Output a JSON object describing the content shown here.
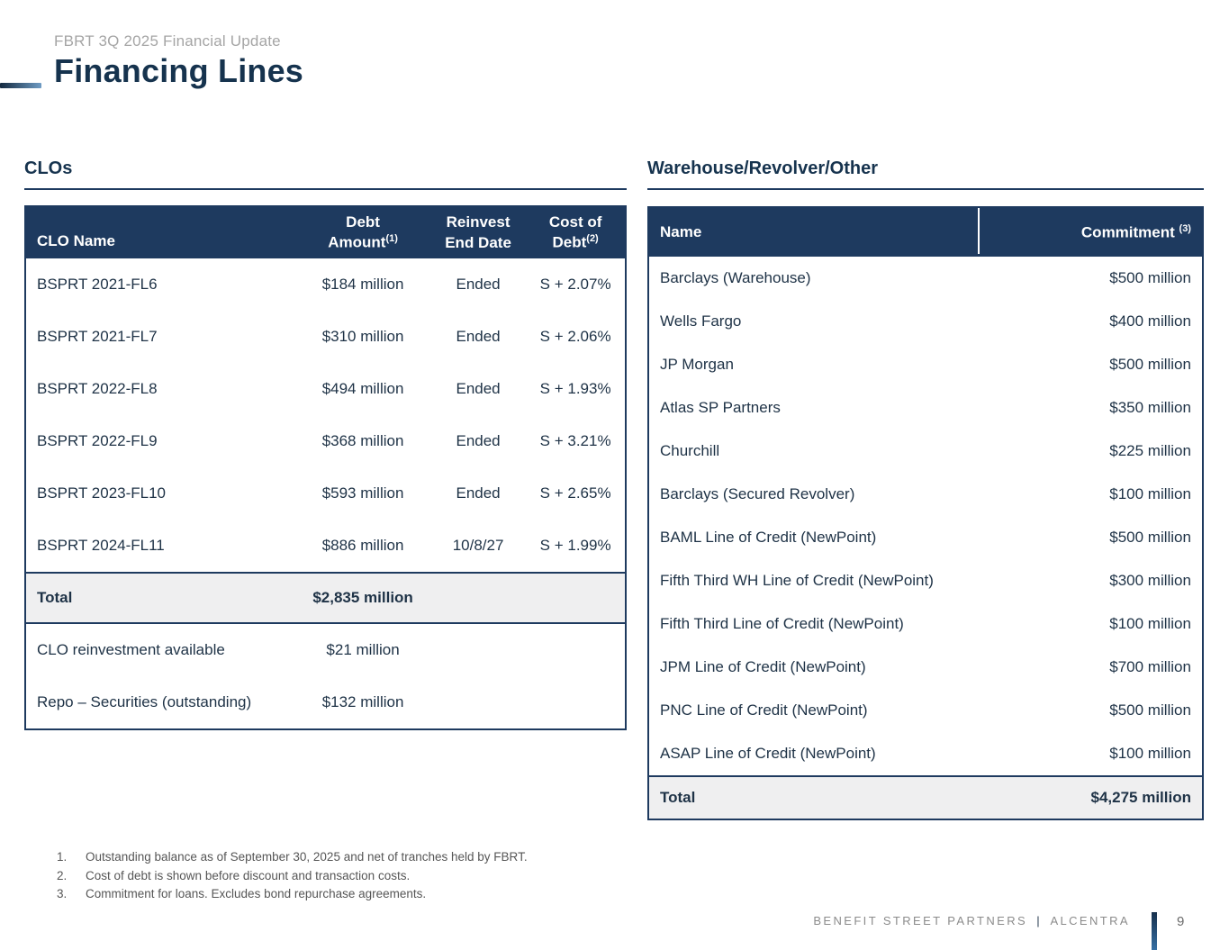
{
  "header": {
    "eyebrow": "FBRT 3Q 2025 Financial Update",
    "title": "Financing Lines"
  },
  "colors": {
    "navy": "#1e3a5f",
    "heading_navy": "#16334e",
    "total_row_bg": "#efeff0",
    "accent_gradient_start": "#13293f",
    "accent_gradient_end": "#6f9cc4"
  },
  "clos": {
    "section_title": "CLOs",
    "header": {
      "name": "CLO Name",
      "debt_line1": "Debt",
      "debt_line2": "Amount",
      "debt_sup": "(1)",
      "reinvest_line1": "Reinvest",
      "reinvest_line2": "End Date",
      "cost_line1": "Cost of",
      "cost_line2": "Debt",
      "cost_sup": "(2)"
    },
    "rows": [
      {
        "name": "BSPRT 2021-FL6",
        "debt": "$184 million",
        "reinvest": "Ended",
        "cost": "S + 2.07%"
      },
      {
        "name": "BSPRT 2021-FL7",
        "debt": "$310 million",
        "reinvest": "Ended",
        "cost": "S + 2.06%"
      },
      {
        "name": "BSPRT 2022-FL8",
        "debt": "$494 million",
        "reinvest": "Ended",
        "cost": "S + 1.93%"
      },
      {
        "name": "BSPRT 2022-FL9",
        "debt": "$368 million",
        "reinvest": "Ended",
        "cost": "S + 3.21%"
      },
      {
        "name": "BSPRT 2023-FL10",
        "debt": "$593 million",
        "reinvest": "Ended",
        "cost": "S + 2.65%"
      },
      {
        "name": "BSPRT 2024-FL11",
        "debt": "$886 million",
        "reinvest": "10/8/27",
        "cost": "S + 1.99%"
      }
    ],
    "total": {
      "label": "Total",
      "value": "$2,835 million"
    },
    "extra_rows": [
      {
        "name": "CLO reinvestment available",
        "value": "$21 million"
      },
      {
        "name": "Repo – Securities (outstanding)",
        "value": "$132 million"
      }
    ]
  },
  "warehouse": {
    "section_title": "Warehouse/Revolver/Other",
    "header": {
      "name": "Name",
      "commitment": "Commitment ",
      "commitment_sup": "(3)"
    },
    "rows": [
      {
        "name": "Barclays (Warehouse)",
        "commitment": "$500 million"
      },
      {
        "name": "Wells Fargo",
        "commitment": "$400 million"
      },
      {
        "name": "JP Morgan",
        "commitment": "$500 million"
      },
      {
        "name": "Atlas SP Partners",
        "commitment": "$350 million"
      },
      {
        "name": "Churchill",
        "commitment": "$225 million"
      },
      {
        "name": "Barclays (Secured Revolver)",
        "commitment": "$100 million"
      },
      {
        "name": "BAML Line of Credit (NewPoint)",
        "commitment": "$500 million"
      },
      {
        "name": "Fifth Third WH Line of Credit (NewPoint)",
        "commitment": "$300 million"
      },
      {
        "name": "Fifth Third Line of Credit (NewPoint)",
        "commitment": "$100 million"
      },
      {
        "name": "JPM Line of Credit (NewPoint)",
        "commitment": "$700 million"
      },
      {
        "name": "PNC Line of Credit (NewPoint)",
        "commitment": "$500 million"
      },
      {
        "name": "ASAP Line of Credit (NewPoint)",
        "commitment": "$100 million"
      }
    ],
    "total": {
      "label": "Total",
      "value": "$4,275 million"
    }
  },
  "footnotes": [
    {
      "num": "1.",
      "text": "Outstanding balance as of September 30, 2025 and net of tranches held by FBRT."
    },
    {
      "num": "2.",
      "text": "Cost of debt is shown before discount and transaction costs."
    },
    {
      "num": "3.",
      "text": "Commitment for loans.  Excludes bond repurchase agreements."
    }
  ],
  "footer": {
    "brand_left": "BENEFIT STREET PARTNERS",
    "separator": "|",
    "brand_right": "ALCENTRA",
    "page_number": "9"
  }
}
